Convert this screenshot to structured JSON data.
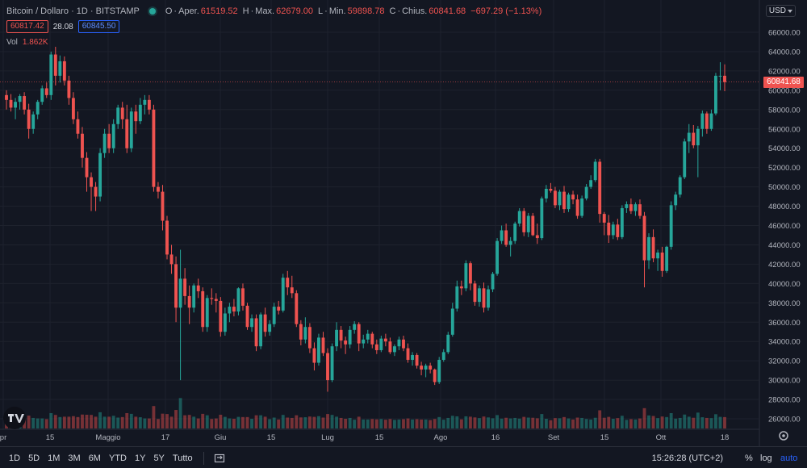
{
  "header": {
    "title": "Bitcoin / Dollaro · 1D · BITSTAMP",
    "open_label": "O",
    "open_text": "Aper.",
    "open_value": "61519.52",
    "high_label": "H",
    "high_text": "Max.",
    "high_value": "62679.00",
    "low_label": "L",
    "low_text": "Min.",
    "low_value": "59898.78",
    "close_label": "C",
    "close_text": "Chius.",
    "close_value": "60841.68",
    "change_value": "−697.29 (−1.13%)",
    "sell_price": "60817.42",
    "spread": "28.08",
    "buy_price": "60845.50",
    "volume_label": "Vol",
    "volume_value": "1.862K"
  },
  "price_axis": {
    "currency": "USD",
    "ticks": [
      "66000.00",
      "64000.00",
      "62000.00",
      "60000.00",
      "58000.00",
      "56000.00",
      "54000.00",
      "52000.00",
      "50000.00",
      "48000.00",
      "46000.00",
      "44000.00",
      "42000.00",
      "40000.00",
      "38000.00",
      "36000.00",
      "34000.00",
      "32000.00",
      "30000.00",
      "28000.00",
      "26000.00"
    ],
    "last_price": "60841.68"
  },
  "time_axis": {
    "labels": [
      "pr",
      "15",
      "Maggio",
      "17",
      "Giu",
      "15",
      "Lug",
      "15",
      "Ago",
      "16",
      "Set",
      "15",
      "Ott",
      "18"
    ]
  },
  "toolbar": {
    "ranges": [
      "1D",
      "5D",
      "1M",
      "3M",
      "6M",
      "YTD",
      "1Y",
      "5Y",
      "Tutto"
    ],
    "clock": "15:26:28 (UTC+2)",
    "percent": "%",
    "log": "log",
    "auto": "auto"
  },
  "colors": {
    "up": "#26a69a",
    "down": "#ef5350",
    "background": "#131722",
    "grid": "#1e222d"
  },
  "icons": [
    "tradingview-logo-icon",
    "compare-icon",
    "gear-icon",
    "chevron-down-icon"
  ],
  "chart_data": {
    "type": "candlestick",
    "title": "Bitcoin / Dollaro · 1D · BITSTAMP",
    "ylim": [
      25000,
      67500
    ],
    "last_price": 60841.68,
    "candles": [
      [
        59500,
        60000,
        58000,
        59000
      ],
      [
        59000,
        59600,
        57800,
        58200
      ],
      [
        58200,
        59200,
        57000,
        58800
      ],
      [
        58800,
        59600,
        58000,
        59400
      ],
      [
        59400,
        59800,
        57500,
        58000
      ],
      [
        58000,
        58600,
        55000,
        56000
      ],
      [
        56000,
        57800,
        55500,
        57500
      ],
      [
        57500,
        59000,
        57000,
        58800
      ],
      [
        58800,
        60500,
        58500,
        60200
      ],
      [
        60200,
        60800,
        59200,
        59500
      ],
      [
        59500,
        64000,
        59000,
        63700
      ],
      [
        63700,
        64500,
        60500,
        61500
      ],
      [
        61500,
        63600,
        60800,
        63000
      ],
      [
        63000,
        63500,
        60500,
        61000
      ],
      [
        61000,
        61500,
        58500,
        59200
      ],
      [
        59200,
        59800,
        56500,
        57000
      ],
      [
        57000,
        57800,
        55000,
        55500
      ],
      [
        55500,
        56200,
        52000,
        53000
      ],
      [
        53000,
        53600,
        49500,
        51000
      ],
      [
        51000,
        51500,
        47500,
        50000
      ],
      [
        50000,
        50500,
        47500,
        49000
      ],
      [
        49000,
        54000,
        48500,
        53500
      ],
      [
        53500,
        56000,
        53000,
        55500
      ],
      [
        55500,
        56500,
        53500,
        54000
      ],
      [
        54000,
        57000,
        53500,
        56500
      ],
      [
        56500,
        58500,
        56000,
        58200
      ],
      [
        58200,
        58800,
        56000,
        57000
      ],
      [
        57000,
        58500,
        53500,
        54000
      ],
      [
        54000,
        58200,
        53600,
        57800
      ],
      [
        57800,
        58500,
        55500,
        56800
      ],
      [
        56800,
        59200,
        56500,
        58500
      ],
      [
        58500,
        59500,
        57500,
        59000
      ],
      [
        59000,
        59500,
        57500,
        58000
      ],
      [
        58000,
        58500,
        49500,
        50000
      ],
      [
        50000,
        50500,
        48800,
        49500
      ],
      [
        49500,
        50200,
        45500,
        46500
      ],
      [
        46500,
        47000,
        42500,
        43000
      ],
      [
        43000,
        44000,
        41000,
        42000
      ],
      [
        42000,
        42800,
        36000,
        37500
      ],
      [
        37500,
        43500,
        30000,
        40500
      ],
      [
        40500,
        41600,
        37800,
        38700
      ],
      [
        38700,
        39800,
        35800,
        37500
      ],
      [
        37500,
        40000,
        37000,
        39800
      ],
      [
        39800,
        40500,
        38500,
        39200
      ],
      [
        39200,
        39600,
        35000,
        35500
      ],
      [
        35500,
        38800,
        35000,
        38500
      ],
      [
        38500,
        39500,
        37800,
        38400
      ],
      [
        38400,
        39000,
        37000,
        38200
      ],
      [
        38200,
        38600,
        34500,
        35000
      ],
      [
        35000,
        37500,
        34600,
        36900
      ],
      [
        36900,
        38000,
        36000,
        37600
      ],
      [
        37600,
        38400,
        36600,
        37100
      ],
      [
        37100,
        39600,
        36700,
        39500
      ],
      [
        39500,
        40000,
        37200,
        37700
      ],
      [
        37700,
        38000,
        35200,
        35500
      ],
      [
        35500,
        36800,
        35000,
        36400
      ],
      [
        36400,
        36800,
        33000,
        33500
      ],
      [
        33500,
        37000,
        33200,
        36800
      ],
      [
        36800,
        37500,
        34500,
        35000
      ],
      [
        35000,
        36200,
        34600,
        35800
      ],
      [
        35800,
        38000,
        35500,
        37600
      ],
      [
        37600,
        38200,
        36800,
        37200
      ],
      [
        37200,
        41000,
        37000,
        40600
      ],
      [
        40600,
        41300,
        38800,
        39600
      ],
      [
        39600,
        40800,
        38500,
        39000
      ],
      [
        39000,
        39300,
        35500,
        35800
      ],
      [
        35800,
        36200,
        33600,
        34200
      ],
      [
        34200,
        36500,
        33800,
        35500
      ],
      [
        35500,
        35900,
        32800,
        33300
      ],
      [
        33300,
        33900,
        31000,
        31800
      ],
      [
        31800,
        34800,
        31500,
        34400
      ],
      [
        34400,
        35000,
        32500,
        32800
      ],
      [
        32800,
        33300,
        28800,
        30000
      ],
      [
        30000,
        33800,
        29800,
        33500
      ],
      [
        33500,
        36000,
        33000,
        35200
      ],
      [
        35200,
        35600,
        33300,
        34100
      ],
      [
        34100,
        34500,
        32700,
        33700
      ],
      [
        33700,
        35600,
        33300,
        35200
      ],
      [
        35200,
        36100,
        34800,
        35800
      ],
      [
        35800,
        36000,
        33000,
        33800
      ],
      [
        33800,
        34700,
        33300,
        34200
      ],
      [
        34200,
        35200,
        33800,
        34800
      ],
      [
        34800,
        35000,
        33300,
        33700
      ],
      [
        33700,
        34200,
        32700,
        33100
      ],
      [
        33100,
        34600,
        32900,
        34300
      ],
      [
        34300,
        34800,
        33500,
        34000
      ],
      [
        34000,
        34400,
        32700,
        32900
      ],
      [
        32900,
        33700,
        32500,
        33500
      ],
      [
        33500,
        34500,
        33100,
        34200
      ],
      [
        34200,
        34600,
        33000,
        33300
      ],
      [
        33300,
        33800,
        31800,
        32100
      ],
      [
        32100,
        32900,
        31500,
        32600
      ],
      [
        32600,
        32800,
        31200,
        31500
      ],
      [
        31500,
        31900,
        30500,
        31100
      ],
      [
        31100,
        31700,
        30300,
        31500
      ],
      [
        31500,
        31800,
        30700,
        31100
      ],
      [
        31100,
        31200,
        29500,
        29800
      ],
      [
        29800,
        32400,
        29600,
        32100
      ],
      [
        32100,
        33200,
        31900,
        32900
      ],
      [
        32900,
        35000,
        32700,
        34700
      ],
      [
        34700,
        38000,
        34500,
        37400
      ],
      [
        37400,
        40300,
        37100,
        39700
      ],
      [
        39700,
        40300,
        38800,
        39500
      ],
      [
        39500,
        42400,
        39200,
        42100
      ],
      [
        42100,
        42300,
        39300,
        40000
      ],
      [
        40000,
        40300,
        37700,
        38100
      ],
      [
        38100,
        39800,
        37600,
        39500
      ],
      [
        39500,
        40100,
        37000,
        37500
      ],
      [
        37500,
        39800,
        37200,
        39400
      ],
      [
        39400,
        41200,
        39100,
        41000
      ],
      [
        41000,
        44700,
        40800,
        44400
      ],
      [
        44400,
        46000,
        44100,
        45500
      ],
      [
        45500,
        46200,
        43800,
        44000
      ],
      [
        44000,
        44800,
        42800,
        44400
      ],
      [
        44400,
        46400,
        44100,
        46200
      ],
      [
        46200,
        47800,
        45900,
        47500
      ],
      [
        47500,
        47800,
        44900,
        45300
      ],
      [
        45300,
        47300,
        44800,
        47000
      ],
      [
        47000,
        47300,
        44900,
        45000
      ],
      [
        45000,
        46200,
        44100,
        44700
      ],
      [
        44700,
        49000,
        44500,
        48800
      ],
      [
        48800,
        50200,
        48400,
        49800
      ],
      [
        49800,
        50400,
        49400,
        49600
      ],
      [
        49600,
        50000,
        47800,
        48100
      ],
      [
        48100,
        49700,
        47600,
        49500
      ],
      [
        49500,
        50100,
        47300,
        47700
      ],
      [
        47700,
        49400,
        47400,
        49200
      ],
      [
        49200,
        49600,
        48200,
        48700
      ],
      [
        48700,
        49200,
        46700,
        47000
      ],
      [
        47000,
        49100,
        46800,
        48800
      ],
      [
        48800,
        50300,
        48600,
        50000
      ],
      [
        50000,
        51200,
        49800,
        50700
      ],
      [
        50700,
        52900,
        50500,
        52600
      ],
      [
        52600,
        52900,
        46300,
        47200
      ],
      [
        47200,
        47400,
        45000,
        46300
      ],
      [
        46300,
        47100,
        44200,
        45000
      ],
      [
        45000,
        46400,
        44600,
        46100
      ],
      [
        46100,
        46700,
        44500,
        44800
      ],
      [
        44800,
        48100,
        44600,
        47800
      ],
      [
        47800,
        48500,
        47300,
        48200
      ],
      [
        48200,
        48800,
        47200,
        47500
      ],
      [
        47500,
        48400,
        47000,
        48200
      ],
      [
        48200,
        48700,
        46700,
        47000
      ],
      [
        47000,
        47400,
        39600,
        42400
      ],
      [
        42400,
        45200,
        41500,
        44800
      ],
      [
        44800,
        45600,
        42200,
        42600
      ],
      [
        42600,
        43500,
        41300,
        43200
      ],
      [
        43200,
        43800,
        40700,
        41300
      ],
      [
        41300,
        43900,
        41100,
        43800
      ],
      [
        43800,
        48500,
        43500,
        48100
      ],
      [
        48100,
        49500,
        47600,
        49200
      ],
      [
        49200,
        51200,
        48900,
        51000
      ],
      [
        51000,
        55000,
        50800,
        54700
      ],
      [
        54700,
        56500,
        53500,
        55600
      ],
      [
        55600,
        56400,
        54000,
        54300
      ],
      [
        54300,
        56300,
        51000,
        56000
      ],
      [
        56000,
        57900,
        55200,
        57600
      ],
      [
        57600,
        57800,
        55500,
        56000
      ],
      [
        56000,
        58000,
        55800,
        57600
      ],
      [
        57600,
        61800,
        57400,
        61500
      ],
      [
        61500,
        62900,
        60000,
        61500
      ],
      [
        61500,
        62679,
        59898.78,
        60841.68
      ]
    ],
    "volume_label": "Vol"
  }
}
